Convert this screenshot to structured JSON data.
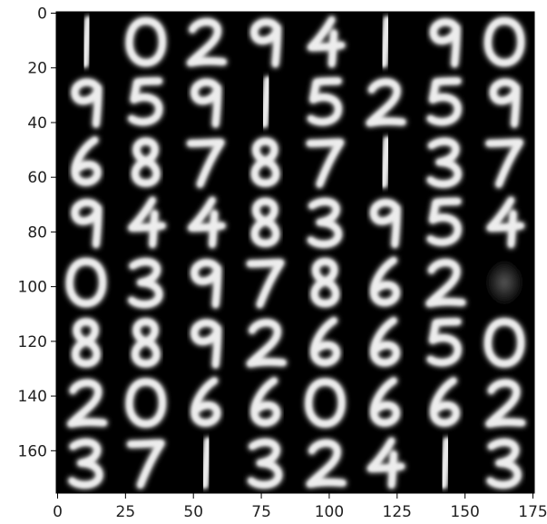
{
  "figure": {
    "x_ticks": [
      "0",
      "25",
      "50",
      "75",
      "100",
      "125",
      "150",
      "175"
    ],
    "y_ticks": [
      "0",
      "20",
      "40",
      "60",
      "80",
      "100",
      "120",
      "140",
      "160"
    ],
    "grid_rows": [
      "10294190",
      "95915259",
      "68787137",
      "94483954",
      "0397862 ",
      "88926650",
      "20660662",
      "37132413"
    ],
    "colors": {
      "background": "#000000",
      "stroke": "#ededed",
      "axis": "#222222"
    }
  }
}
